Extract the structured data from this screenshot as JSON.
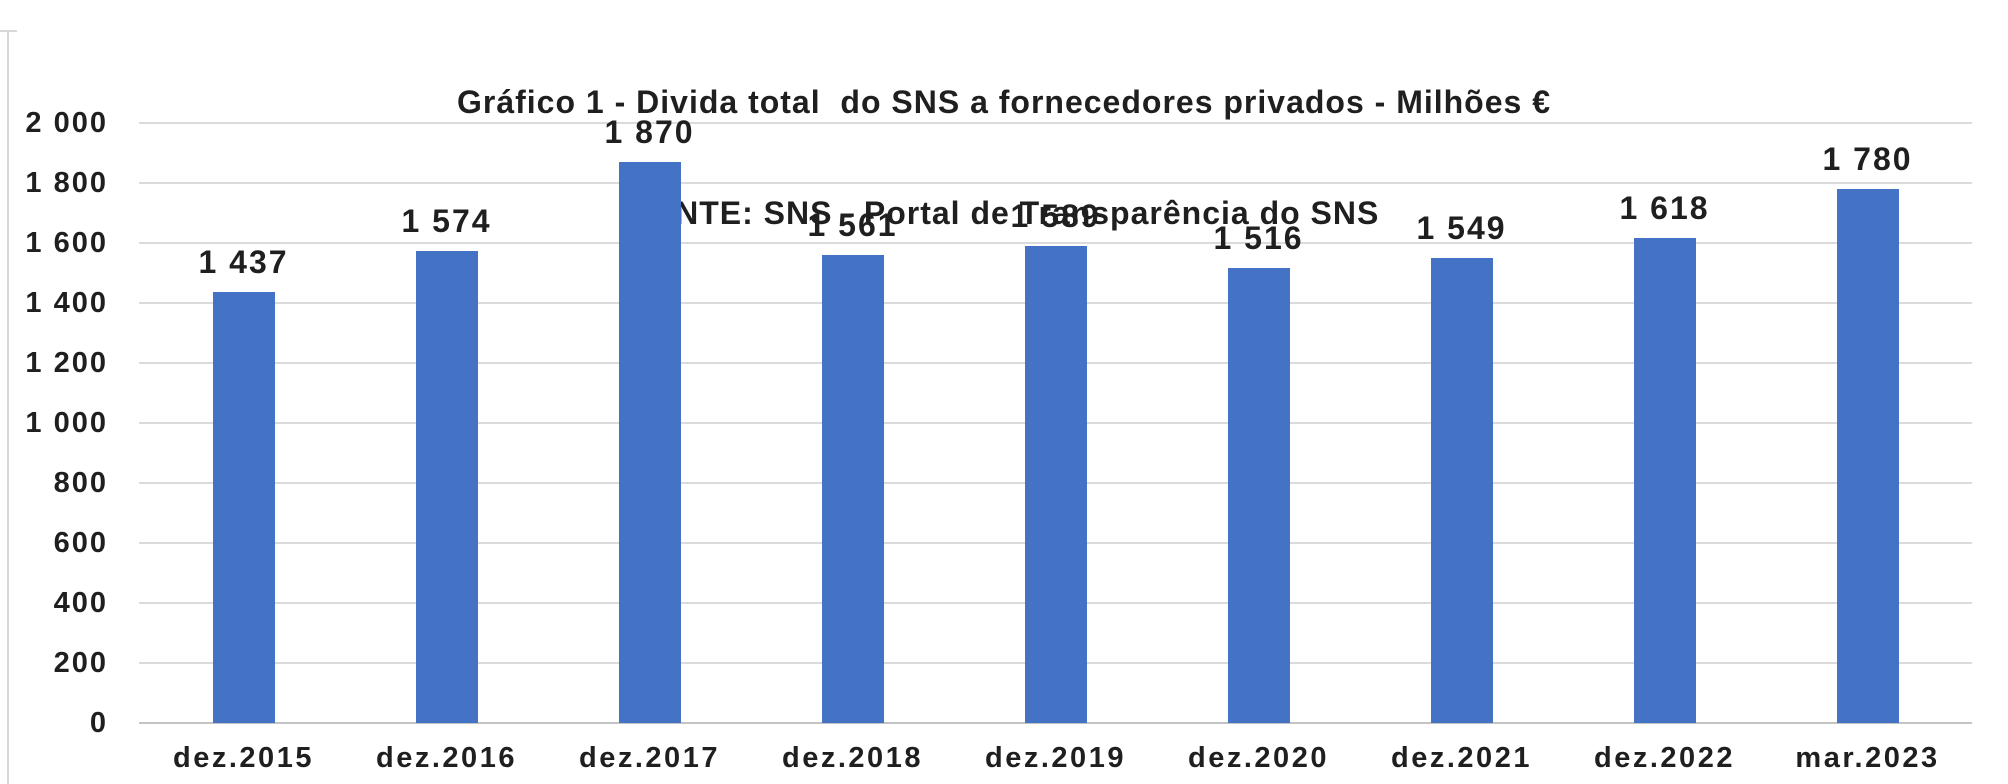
{
  "header": {
    "title": "Gráfico 1 - Divida total  do SNS a fornecedores privados - Milhões €",
    "subtitle": "FONTE: SNS - Portal de Transparência do SNS"
  },
  "chart_data": {
    "type": "bar",
    "title": "Gráfico 1 - Divida total  do SNS a fornecedores privados - Milhões €",
    "source_line": "FONTE: SNS - Portal de Transparência do SNS",
    "categories": [
      "dez.2015",
      "dez.2016",
      "dez.2017",
      "dez.2018",
      "dez.2019",
      "dez.2020",
      "dez.2021",
      "dez.2022",
      "mar.2023"
    ],
    "values": [
      1437,
      1574,
      1870,
      1561,
      1589,
      1516,
      1549,
      1618,
      1780
    ],
    "value_labels": [
      "1 437",
      "1 574",
      "1 870",
      "1 561",
      "1 589",
      "1 516",
      "1 549",
      "1 618",
      "1 780"
    ],
    "xlabel": "",
    "ylabel": "",
    "ylim": [
      0,
      2000
    ],
    "y_tick_values": [
      0,
      200,
      400,
      600,
      800,
      1000,
      1200,
      1400,
      1600,
      1800,
      2000
    ],
    "y_tick_labels": [
      "0",
      "200",
      "400",
      "600",
      "800",
      "1 000",
      "1 200",
      "1 400",
      "1 600",
      "1 800",
      "2 000"
    ],
    "grid": "horizontal-only",
    "legend": "none",
    "units": "Milhões €"
  },
  "colors": {
    "bar": "#4473C5",
    "gridline": "#DBDBDB",
    "axis_line": "#C4C4C4",
    "text": "#1F1F1F",
    "background": "#FFFFFF",
    "crop_border": "#D8D8D8"
  }
}
